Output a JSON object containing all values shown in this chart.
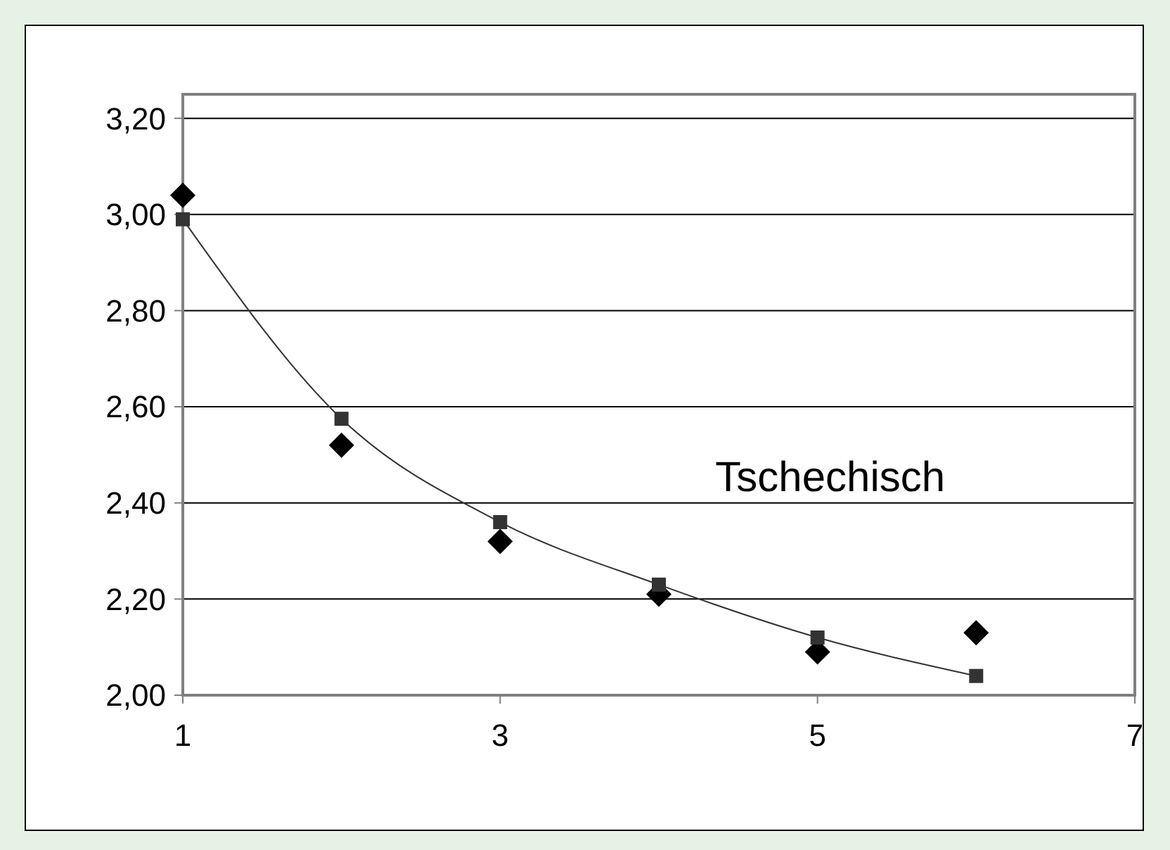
{
  "chart_data": {
    "type": "scatter",
    "x": [
      1,
      2,
      3,
      4,
      5,
      6
    ],
    "series": [
      {
        "color": "#000000",
        "marker": "diamond",
        "values": [
          3.04,
          2.52,
          2.32,
          2.21,
          2.09,
          2.13
        ]
      },
      {
        "type": "line",
        "color": "#333333",
        "marker": "square",
        "line_style": "solid",
        "values": [
          2.99,
          2.575,
          2.36,
          2.23,
          2.12,
          2.04
        ]
      }
    ],
    "xlim": [
      1,
      7
    ],
    "xticks": [
      1,
      3,
      5,
      7
    ],
    "ylim": [
      2,
      3.25
    ],
    "yticks": [
      {
        "value": 2,
        "label": "2,00"
      },
      {
        "value": 2.2,
        "label": "2,20"
      },
      {
        "value": 2.4,
        "label": "2,40"
      },
      {
        "value": 2.6,
        "label": "2,60"
      },
      {
        "value": 2.8,
        "label": "2,80"
      },
      {
        "value": 3,
        "label": "3,00"
      },
      {
        "value": 3.2,
        "label": "3,20"
      }
    ],
    "grid": "y",
    "annotations": [
      "Tschechisch"
    ]
  }
}
